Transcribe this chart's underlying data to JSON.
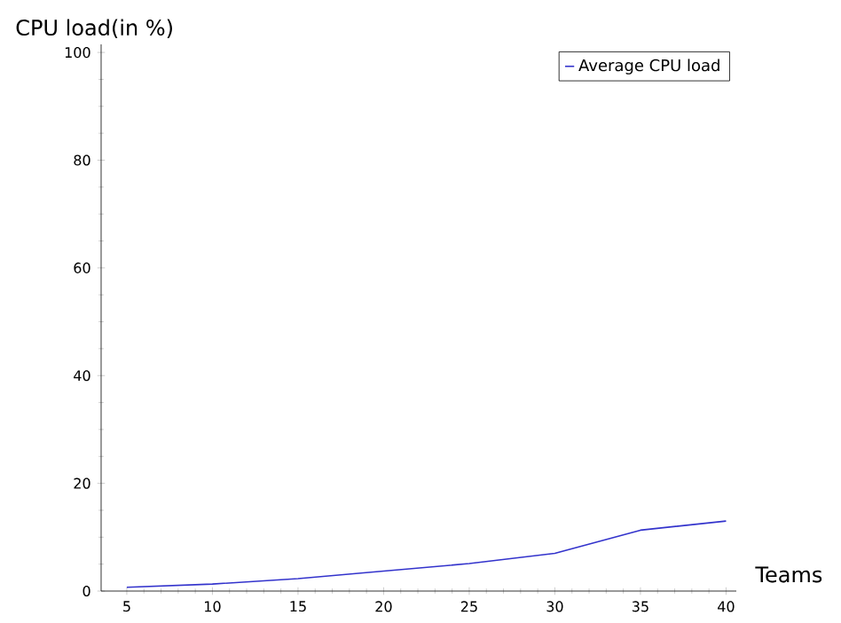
{
  "chart_data": {
    "type": "line",
    "xlabel": "Teams",
    "ylabel": "CPU load(in %)",
    "x": [
      5,
      10,
      15,
      20,
      25,
      30,
      35,
      40
    ],
    "series": [
      {
        "name": "Average CPU load",
        "color": "#3333cc",
        "values": [
          0.7,
          1.3,
          2.3,
          3.7,
          5.1,
          7.0,
          11.3,
          13.0
        ]
      }
    ],
    "xlim": [
      3.5,
      40.6
    ],
    "ylim": [
      0,
      101.5
    ],
    "xticks": [
      5,
      10,
      15,
      20,
      25,
      30,
      35,
      40
    ],
    "yticks": [
      0,
      20,
      40,
      60,
      80,
      100
    ],
    "grid": false,
    "legend": "top right",
    "marker": "none",
    "line_style": "solid"
  }
}
